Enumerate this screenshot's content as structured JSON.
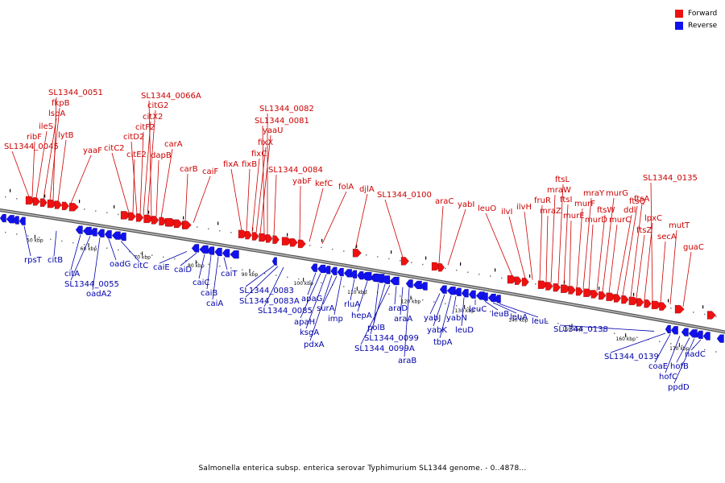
{
  "caption": "Salmonella enterica subsp. enterica serovar Typhimurium SL1344 genome. - 0..4878...",
  "legend": [
    {
      "label": "Forward",
      "color": "#ee1111"
    },
    {
      "label": "Reverse",
      "color": "#1111ee"
    }
  ],
  "colors": {
    "forward": "#ee1111",
    "reverse": "#1111ee",
    "axis": "#888888",
    "text_forward": "#cc0000",
    "text_reverse": "#0000aa"
  },
  "scale": {
    "kbp_min": 43.5,
    "kbp_max": 178.5,
    "tick_labels": [
      "50 kbp",
      "60 kbp",
      "70 kbp",
      "80 kbp",
      "90 kbp",
      "100 kbp",
      "110 kbp",
      "120 kbp",
      "130 kbp",
      "140 kbp",
      "150 kbp",
      "160 kbp",
      "170 kbp"
    ]
  },
  "forward_labels": [
    "SL1344_0045",
    "ribF",
    "ileS",
    "lspA",
    "fkpB",
    "SL1344_0051",
    "lytB",
    "yaaF",
    "citC2",
    "citE2",
    "citD2",
    "citF2",
    "citX2",
    "citG2",
    "SL1344_0066A",
    "dapB",
    "carA",
    "carB",
    "caiF",
    "fixA",
    "fixB",
    "fixC",
    "fixX",
    "yaaU",
    "SL1344_0081",
    "SL1344_0082",
    "SL1344_0084",
    "yabF",
    "kefC",
    "folA",
    "djlA",
    "SL1344_0100",
    "araC",
    "yabI",
    "leuO",
    "ilvI",
    "ilvH",
    "fruR",
    "mraZ",
    "mraW",
    "ftsL",
    "ftsI",
    "murE",
    "murF",
    "mraY",
    "murD",
    "ftsW",
    "murG",
    "murC",
    "ddl",
    "ftsQ",
    "ftsA",
    "ftsZ",
    "lpxC",
    "SL1344_0135",
    "secA",
    "mutT",
    "guaC"
  ],
  "reverse_labels": [
    "rpsT",
    "citB",
    "citA",
    "SL1344_0055",
    "oadA2",
    "oadG",
    "citC",
    "caiE",
    "caiD",
    "caiC",
    "caiB",
    "caiA",
    "caiT",
    "SL1344_0083",
    "SL1344_0083A",
    "SL1344_0085",
    "apaG",
    "apaH",
    "ksgA",
    "pdxA",
    "surA",
    "imp",
    "rluA",
    "hepA",
    "polB",
    "SL1344_0099",
    "SL1344_0099A",
    "araD",
    "araA",
    "araB",
    "yabJ",
    "yabK",
    "tbpA",
    "yabN",
    "leuD",
    "leuC",
    "leuB",
    "leuA",
    "leuL",
    "SL1344_0138",
    "SL1344_0139",
    "coaE",
    "hofC",
    "hofB",
    "ppdD",
    "nadC"
  ]
}
